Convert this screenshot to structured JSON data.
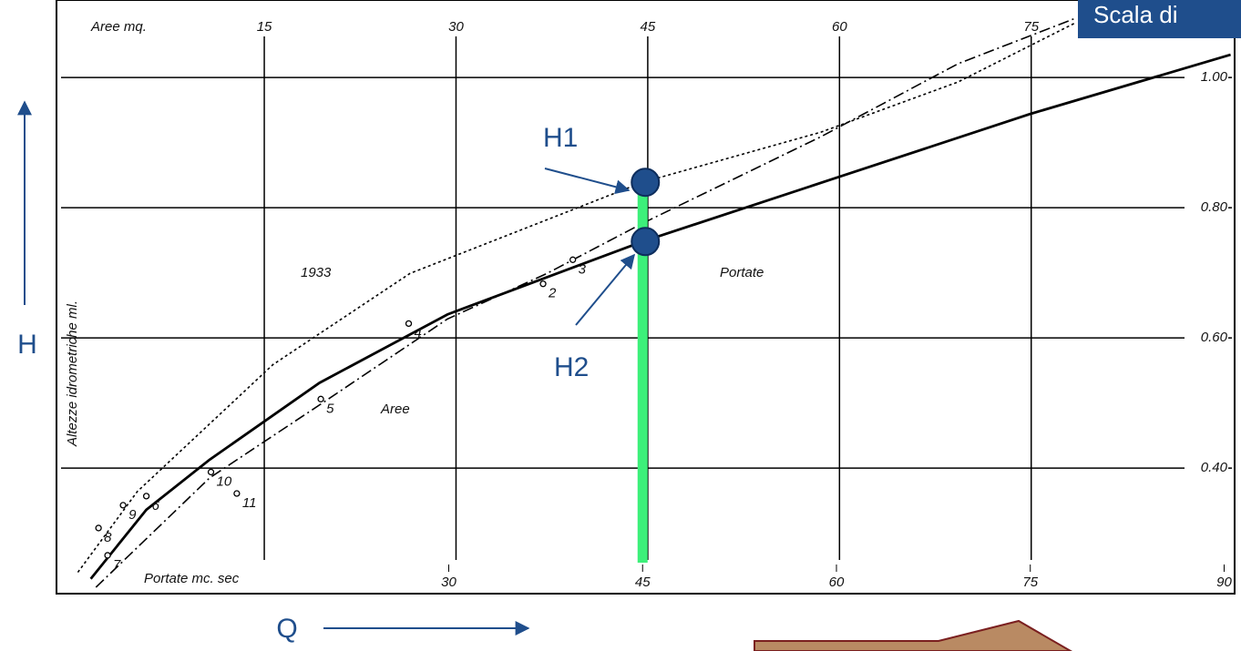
{
  "slide": {
    "header": "Scala di",
    "h_axis": "H",
    "q_axis": "Q",
    "h1": "H1",
    "h2": "H2"
  },
  "chart_data": {
    "type": "line",
    "x_label": "Portate mc. sec",
    "x2_label": "Aree mq.",
    "y_label": "Altezze idrometriche ml.",
    "xlim": [
      0,
      90.6
    ],
    "xticks": [
      30,
      45,
      60,
      75,
      90
    ],
    "x2lim": [
      -0.9,
      90.7
    ],
    "x2ticks": [
      15,
      30,
      45,
      60,
      75
    ],
    "ylim": [
      0.21,
      1.105
    ],
    "yticks": [
      {
        "value": 0.4,
        "label": "0.40"
      },
      {
        "value": 0.6,
        "label": "0.60"
      },
      {
        "value": 0.8,
        "label": "0.80"
      },
      {
        "value": 1.0,
        "label": "1.00"
      }
    ],
    "grid": true,
    "series": [
      {
        "name": "Portate",
        "color": "#000000",
        "style": "solid",
        "x": [
          2.3,
          6.6,
          11.5,
          20,
          29.9,
          45,
          60,
          75,
          90.5
        ],
        "y": [
          0.23,
          0.336,
          0.413,
          0.531,
          0.636,
          0.748,
          0.846,
          0.944,
          1.035
        ]
      },
      {
        "name": "1933",
        "color": "#000000",
        "style": "dotted",
        "x": [
          1.3,
          5.9,
          16.4,
          27,
          45,
          58.8,
          69.4,
          78.5
        ],
        "y": [
          0.24,
          0.364,
          0.559,
          0.699,
          0.839,
          0.916,
          0.993,
          1.084
        ]
      },
      {
        "name": "Aree",
        "color": "#000000",
        "style": "dashdot",
        "x": [
          2.7,
          11.5,
          20,
          29.9,
          37.6,
          45,
          58.8,
          69.4,
          78.5
        ],
        "y": [
          0.217,
          0.385,
          0.497,
          0.629,
          0.699,
          0.776,
          0.909,
          1.021,
          1.091
        ]
      }
    ],
    "points": {
      "labels": [
        "2",
        "3",
        "4",
        "5",
        "6",
        "7",
        "8",
        "9",
        "10",
        "11"
      ],
      "x": [
        37.3,
        39.6,
        26.9,
        20.1,
        6.6,
        3.6,
        2.9,
        4.8,
        11.6,
        13.6
      ],
      "y": [
        0.683,
        0.72,
        0.622,
        0.506,
        0.357,
        0.266,
        0.308,
        0.343,
        0.394,
        0.361
      ]
    },
    "highlight_x": 45,
    "highlight_color": "#3df07a",
    "marker_color": "#1f4e8c"
  }
}
